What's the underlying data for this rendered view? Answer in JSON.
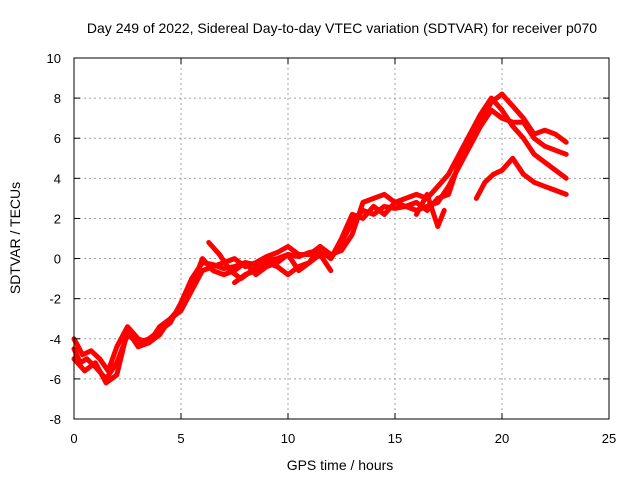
{
  "chart_data": {
    "type": "line",
    "title": "Day 249 of 2022, Sidereal Day-to-day VTEC variation (SDTVAR) for receiver p070",
    "xlabel": "GPS time / hours",
    "ylabel": "SDTVAR / TECUs",
    "xlim": [
      0,
      25
    ],
    "ylim": [
      -8,
      10
    ],
    "xticks": [
      0,
      5,
      10,
      15,
      20,
      25
    ],
    "yticks": [
      -8,
      -6,
      -4,
      -2,
      0,
      2,
      4,
      6,
      8,
      10
    ],
    "grid": true,
    "color": "#ff0000",
    "series": [
      {
        "name": "s1",
        "x": [
          0.0,
          0.3,
          0.6,
          1.0,
          1.5,
          2.0,
          2.5,
          3.0,
          3.5,
          4.0,
          4.5,
          5.0,
          5.5,
          6.0,
          6.5,
          7.0,
          7.5,
          8.0,
          8.5,
          9.0,
          9.5,
          10.0,
          10.5,
          11.0,
          11.5,
          12.0,
          12.5,
          13.0,
          13.5,
          14.0,
          14.5,
          15.0,
          15.5,
          16.0,
          16.5,
          17.0,
          17.5,
          18.0,
          18.5,
          19.0,
          19.5,
          20.0,
          20.5,
          21.0,
          21.5,
          22.0,
          22.5,
          23.0
        ],
        "y": [
          -4.5,
          -5.2,
          -5.0,
          -5.4,
          -6.0,
          -5.2,
          -3.8,
          -4.2,
          -4.0,
          -3.6,
          -3.2,
          -2.2,
          -1.0,
          -0.2,
          -0.3,
          -0.5,
          -0.4,
          -0.2,
          -0.3,
          -0.1,
          0.0,
          0.2,
          0.1,
          0.3,
          0.4,
          0.0,
          0.8,
          1.8,
          2.4,
          2.2,
          2.6,
          2.5,
          2.6,
          2.4,
          2.6,
          2.8,
          3.6,
          4.6,
          5.6,
          6.6,
          7.4,
          7.0,
          6.8,
          6.8,
          6.0,
          5.6,
          5.4,
          5.2
        ]
      },
      {
        "name": "s2",
        "x": [
          0.0,
          0.4,
          0.8,
          1.2,
          1.6,
          2.0,
          2.5,
          3.0,
          3.5,
          4.0,
          4.5,
          5.0,
          5.5,
          6.0,
          6.5,
          7.0,
          7.5,
          8.0,
          8.5,
          9.0,
          9.5,
          10.0,
          10.5,
          11.0,
          11.5,
          12.0,
          12.5,
          13.0,
          13.5,
          14.0,
          14.5,
          15.0,
          15.5,
          16.0,
          16.5,
          17.0,
          17.5,
          18.0,
          18.5,
          19.0,
          19.5,
          20.0,
          20.5,
          21.0,
          21.5,
          22.0,
          22.5,
          23.0
        ],
        "y": [
          -4.0,
          -4.8,
          -4.6,
          -5.0,
          -5.6,
          -4.4,
          -3.4,
          -4.0,
          -4.2,
          -3.8,
          -3.0,
          -2.6,
          -1.6,
          -0.6,
          -0.4,
          -0.2,
          0.0,
          -0.4,
          -0.2,
          0.1,
          0.3,
          0.6,
          0.2,
          0.2,
          0.6,
          0.2,
          0.4,
          1.2,
          2.8,
          3.0,
          3.2,
          2.8,
          3.0,
          3.2,
          3.0,
          3.6,
          4.2,
          5.2,
          6.2,
          7.2,
          8.0,
          7.4,
          6.6,
          6.0,
          5.2,
          4.8,
          4.4,
          4.0
        ]
      },
      {
        "name": "s3",
        "x": [
          0.0,
          0.5,
          1.0,
          1.5,
          2.0,
          2.5,
          3.0,
          3.5,
          4.0,
          4.5,
          5.0,
          5.5,
          6.0,
          6.5,
          7.0,
          7.5,
          8.0,
          8.5,
          9.0,
          9.5,
          10.0,
          10.5,
          11.0,
          11.5,
          12.0,
          12.5,
          13.0,
          13.5,
          14.0,
          14.5,
          15.0,
          15.5,
          16.0,
          16.5,
          17.0,
          17.5,
          18.0,
          18.5,
          19.0,
          19.5,
          20.0,
          20.5,
          21.0,
          21.5,
          22.0,
          22.5,
          23.0
        ],
        "y": [
          -5.0,
          -5.6,
          -5.2,
          -6.2,
          -5.8,
          -3.6,
          -4.4,
          -4.2,
          -3.4,
          -3.0,
          -2.4,
          -1.4,
          0.0,
          -0.6,
          -0.8,
          -0.6,
          -0.2,
          -0.8,
          -0.4,
          -0.2,
          0.2,
          -0.6,
          -0.2,
          0.6,
          0.0,
          1.0,
          2.2,
          2.0,
          2.6,
          2.2,
          2.8,
          2.6,
          2.8,
          2.4,
          3.0,
          3.2,
          4.8,
          5.8,
          6.8,
          7.8,
          8.2,
          7.6,
          7.0,
          6.2,
          6.4,
          6.2,
          5.8
        ]
      },
      {
        "name": "s4",
        "x": [
          6.3,
          6.8,
          7.3,
          7.8,
          8.3,
          8.8
        ],
        "y": [
          0.8,
          0.2,
          -0.6,
          -1.0,
          -0.6,
          -0.2
        ]
      },
      {
        "name": "s5",
        "x": [
          7.5,
          8.0,
          8.5,
          9.0,
          9.5,
          10.0,
          10.5,
          11.0,
          11.5,
          12.0
        ],
        "y": [
          -1.2,
          -0.8,
          -0.6,
          -0.2,
          -0.4,
          -0.8,
          -0.4,
          -0.2,
          0.2,
          -0.6
        ]
      },
      {
        "name": "s6",
        "x": [
          16.0,
          16.5,
          17.0,
          17.3
        ],
        "y": [
          2.2,
          3.2,
          1.6,
          2.4
        ]
      },
      {
        "name": "s7",
        "x": [
          18.8,
          19.2,
          19.6,
          20.0,
          20.5,
          21.0,
          21.5,
          22.0,
          22.5,
          23.0
        ],
        "y": [
          3.0,
          3.8,
          4.2,
          4.4,
          5.0,
          4.2,
          3.8,
          3.6,
          3.4,
          3.2
        ]
      }
    ]
  }
}
